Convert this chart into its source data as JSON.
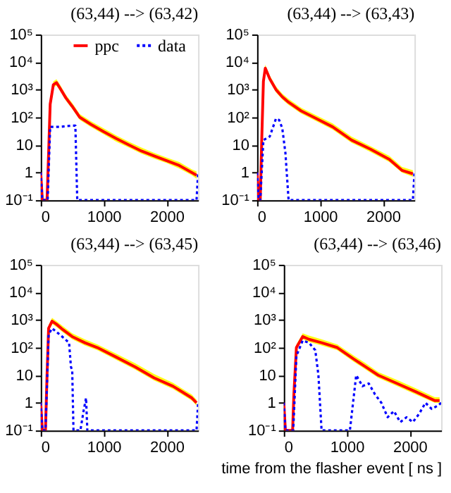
{
  "chart_data": [
    {
      "type": "line",
      "title": "(63,44) --> (63,42)",
      "log": "y",
      "xlim": [
        0,
        2500
      ],
      "xticks": [
        0,
        1000,
        2000
      ],
      "ylim": [
        0.1,
        100000
      ],
      "yticks": [
        {
          "value": 0.1,
          "label": "10⁻¹"
        },
        1,
        10,
        {
          "value": 100,
          "label": "10²"
        },
        {
          "value": 1000,
          "label": "10³"
        },
        {
          "value": 10000,
          "label": "10⁴"
        },
        {
          "value": 100000,
          "label": "10⁵"
        }
      ],
      "legend": "top",
      "grid": false,
      "series": [
        {
          "name": "ppc",
          "color": "#ff0000",
          "line_style": "solid",
          "x": [
            0,
            25,
            100,
            125,
            150,
            200,
            250,
            300,
            400,
            500,
            620,
            800,
            1000,
            1200,
            1400,
            1600,
            1800,
            2000,
            2200,
            2400,
            2475
          ],
          "values": [
            1,
            0.1,
            0.1,
            5,
            300,
            1500,
            1800,
            1200,
            500,
            250,
            100,
            55,
            30,
            17,
            10,
            6,
            4,
            2.7,
            1.8,
            1,
            0.8
          ],
          "lower": [
            0.8,
            0.1,
            0.1,
            4,
            240,
            1200,
            1400,
            950,
            400,
            200,
            80,
            44,
            24,
            13,
            8,
            4.8,
            3.2,
            2.2,
            1.4,
            0.8,
            0.6
          ],
          "upper": [
            1.3,
            0.1,
            0.1,
            7,
            400,
            2000,
            2400,
            1600,
            650,
            330,
            130,
            72,
            40,
            22,
            13,
            8,
            5.2,
            3.5,
            2.4,
            1.3,
            1.1
          ]
        },
        {
          "name": "data",
          "color": "#0000ff",
          "line_style": "dotted",
          "x": [
            0,
            25,
            110,
            125,
            150,
            300,
            500,
            550,
            580,
            2475,
            2500
          ],
          "values": [
            1,
            0.1,
            0.1,
            1,
            45,
            45,
            50,
            50,
            0.1,
            0.1,
            1
          ]
        }
      ]
    },
    {
      "type": "line",
      "title": "(63,44) --> (63,43)",
      "log": "y",
      "xlim": [
        0,
        2500
      ],
      "xticks": [
        0,
        1000,
        2000
      ],
      "ylim": [
        0.1,
        100000
      ],
      "yticks": [
        {
          "value": 0.1,
          "label": "10⁻¹"
        },
        1,
        10,
        {
          "value": 100,
          "label": "10²"
        },
        {
          "value": 1000,
          "label": "10³"
        },
        {
          "value": 10000,
          "label": "10⁴"
        },
        {
          "value": 100000,
          "label": "10⁵"
        }
      ],
      "legend": "top",
      "grid": false,
      "series": [
        {
          "name": "ppc",
          "color": "#ff0000",
          "line_style": "solid",
          "x": [
            0,
            25,
            50,
            75,
            100,
            130,
            200,
            300,
            400,
            500,
            700,
            900,
            1200,
            1500,
            1800,
            2100,
            2300,
            2475
          ],
          "values": [
            1,
            0.1,
            0.1,
            20,
            2000,
            6000,
            2500,
            1000,
            550,
            350,
            170,
            100,
            45,
            15,
            7,
            3,
            1.2,
            0.9
          ],
          "lower": [
            0.8,
            0.1,
            0.1,
            16,
            1600,
            4800,
            2000,
            800,
            440,
            280,
            136,
            80,
            36,
            12,
            5.6,
            2.4,
            1,
            0.7
          ],
          "upper": [
            1.3,
            0.1,
            0.1,
            27,
            2700,
            8000,
            3300,
            1300,
            720,
            460,
            220,
            130,
            60,
            20,
            9,
            4,
            1.6,
            1.2
          ]
        },
        {
          "name": "data",
          "color": "#0000ff",
          "line_style": "dotted",
          "x": [
            0,
            25,
            50,
            100,
            200,
            300,
            350,
            400,
            450,
            500,
            2475,
            2500
          ],
          "values": [
            1,
            0.1,
            0.1,
            15,
            20,
            90,
            80,
            40,
            5,
            0.1,
            0.1,
            1
          ]
        }
      ]
    },
    {
      "type": "line",
      "title": "(63,44) --> (63,45)",
      "log": "y",
      "xlim": [
        0,
        2500
      ],
      "xticks": [
        0,
        1000,
        2000
      ],
      "ylim": [
        0.1,
        100000
      ],
      "yticks": [
        {
          "value": 0.1,
          "label": "10⁻¹"
        },
        1,
        10,
        {
          "value": 100,
          "label": "10²"
        },
        {
          "value": 1000,
          "label": "10³"
        },
        {
          "value": 10000,
          "label": "10⁴"
        },
        {
          "value": 100000,
          "label": "10⁵"
        }
      ],
      "legend": "top",
      "grid": false,
      "series": [
        {
          "name": "ppc",
          "color": "#ff0000",
          "line_style": "solid",
          "x": [
            0,
            25,
            75,
            100,
            125,
            180,
            250,
            350,
            500,
            700,
            900,
            1200,
            1500,
            1800,
            2100,
            2400,
            2475
          ],
          "values": [
            1,
            0.1,
            0.1,
            10,
            500,
            900,
            700,
            450,
            250,
            150,
            100,
            45,
            20,
            8,
            4,
            1.5,
            1
          ],
          "lower": [
            0.8,
            0.1,
            0.1,
            8,
            400,
            720,
            560,
            360,
            200,
            120,
            80,
            36,
            16,
            6.4,
            3.2,
            1.2,
            0.8
          ],
          "upper": [
            1.3,
            0.1,
            0.1,
            13,
            650,
            1200,
            900,
            600,
            330,
            200,
            130,
            60,
            27,
            11,
            5.3,
            2,
            1.3
          ]
        },
        {
          "name": "data",
          "color": "#0000ff",
          "line_style": "dotted",
          "x": [
            0,
            25,
            75,
            100,
            125,
            180,
            300,
            450,
            480,
            500,
            520,
            630,
            680,
            720,
            740,
            2475,
            2500
          ],
          "values": [
            1,
            0.1,
            0.1,
            5,
            300,
            500,
            300,
            150,
            20,
            15,
            0.1,
            0.1,
            0.5,
            1.5,
            0.1,
            0.1,
            1
          ]
        }
      ]
    },
    {
      "type": "line",
      "title": "(63,44) --> (63,46)",
      "xlabel": "time from the flasher event [ ns ]",
      "log": "y",
      "xlim": [
        0,
        2500
      ],
      "xticks": [
        0,
        1000,
        2000
      ],
      "ylim": [
        0.1,
        100000
      ],
      "yticks": [
        {
          "value": 0.1,
          "label": "10⁻¹"
        },
        1,
        10,
        {
          "value": 100,
          "label": "10²"
        },
        {
          "value": 1000,
          "label": "10³"
        },
        {
          "value": 10000,
          "label": "10⁴"
        },
        {
          "value": 100000,
          "label": "10⁵"
        }
      ],
      "legend": "top",
      "grid": false,
      "series": [
        {
          "name": "ppc",
          "color": "#ff0000",
          "line_style": "solid",
          "x": [
            0,
            25,
            140,
            160,
            200,
            300,
            400,
            600,
            850,
            1100,
            1300,
            1500,
            1800,
            2100,
            2400,
            2475
          ],
          "values": [
            1,
            0.1,
            0.1,
            2,
            100,
            250,
            200,
            150,
            100,
            40,
            20,
            10,
            5,
            2.5,
            1.2,
            1.2
          ],
          "lower": [
            0.8,
            0.1,
            0.1,
            1.6,
            80,
            200,
            160,
            120,
            80,
            32,
            16,
            8,
            4,
            2,
            1,
            1
          ],
          "upper": [
            1.3,
            0.1,
            0.1,
            2.7,
            130,
            330,
            270,
            200,
            130,
            53,
            27,
            13,
            6.7,
            3.3,
            1.6,
            1.6
          ]
        },
        {
          "name": "data",
          "color": "#0000ff",
          "line_style": "dotted",
          "x": [
            0,
            25,
            150,
            200,
            300,
            400,
            500,
            550,
            600,
            1050,
            1100,
            1150,
            1250,
            1350,
            1450,
            1550,
            1650,
            1750,
            1850,
            1950,
            2050,
            2150,
            2250,
            2350,
            2450,
            2500
          ],
          "values": [
            1,
            0.1,
            0.1,
            50,
            180,
            150,
            80,
            10,
            0.1,
            0.1,
            1,
            10,
            4,
            5,
            2,
            1,
            0.3,
            0.5,
            0.2,
            0.3,
            0.2,
            0.4,
            1,
            0.6,
            0.8,
            1
          ]
        }
      ]
    }
  ]
}
